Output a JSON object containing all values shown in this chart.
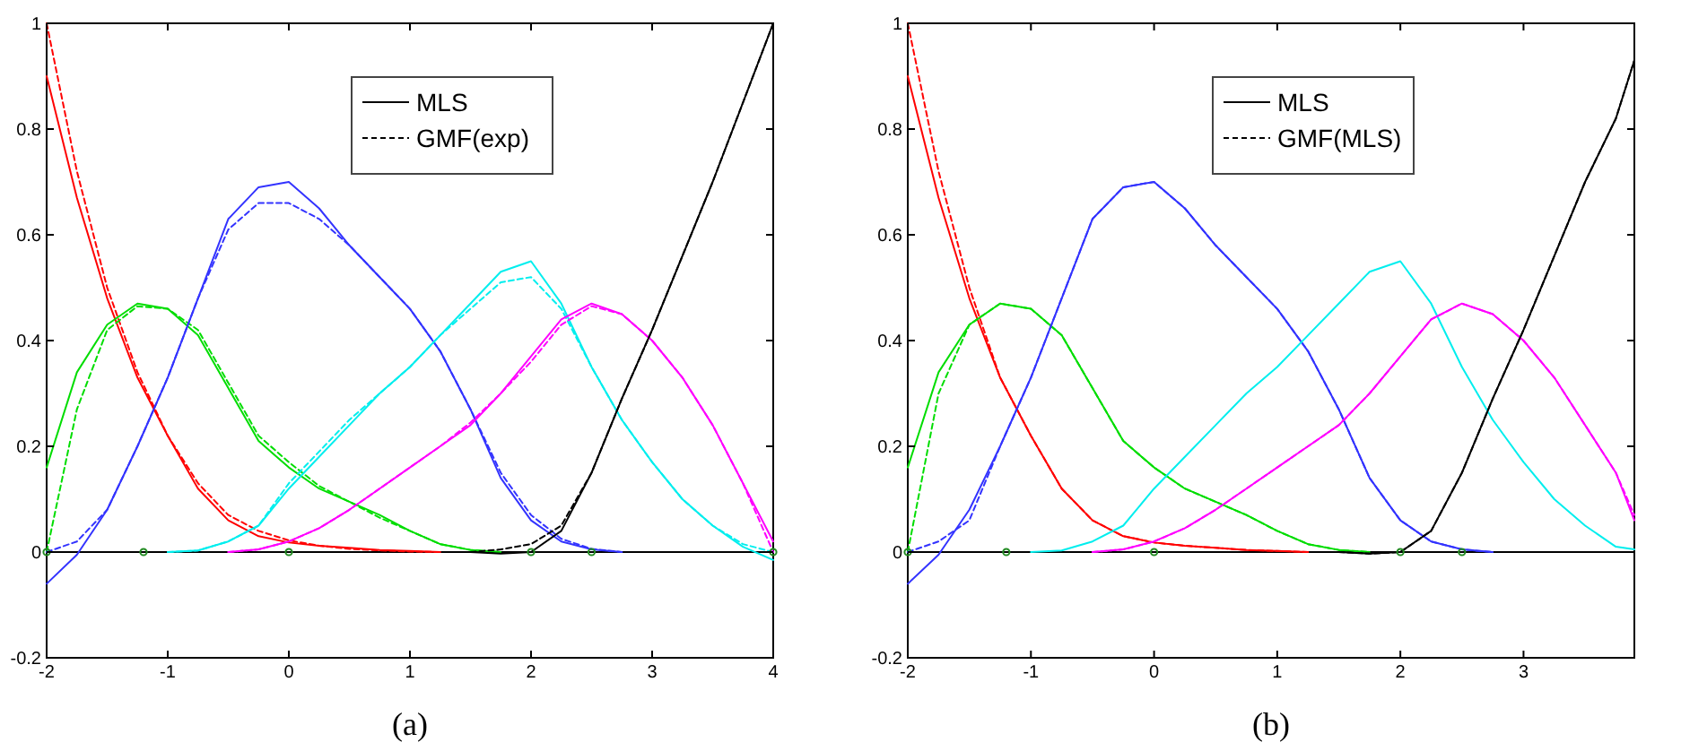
{
  "chart_data": [
    {
      "type": "line",
      "title": "(a)",
      "x": [
        -2,
        -1.75,
        -1.5,
        -1.25,
        -1,
        -0.75,
        -0.5,
        -0.25,
        0,
        0.25,
        0.5,
        0.75,
        1,
        1.25,
        1.5,
        1.75,
        2,
        2.25,
        2.5,
        2.75,
        3,
        3.25,
        3.5,
        3.75,
        4
      ],
      "xlim": [
        -2,
        4
      ],
      "ylim": [
        -0.2,
        1
      ],
      "xticks": [
        -2,
        -1,
        0,
        1,
        2,
        3,
        4
      ],
      "yticks": [
        -0.2,
        0,
        0.2,
        0.4,
        0.6,
        0.8,
        1
      ],
      "legend": "top right",
      "ref_lines": [
        {
          "axis": "y",
          "value": 0,
          "color": "#000000"
        }
      ],
      "series": [
        {
          "color": "#ff0000",
          "line_style": "solid",
          "values": [
            0.9,
            0.67,
            0.48,
            0.33,
            0.22,
            0.12,
            0.06,
            0.03,
            0.018,
            0.012,
            0.008,
            0.004,
            0.002,
            0,
            null,
            null,
            null,
            null,
            null,
            null,
            null,
            null,
            null,
            null,
            null
          ]
        },
        {
          "color": "#ff0000",
          "line_style": "dashed",
          "values": [
            1.0,
            0.72,
            0.5,
            0.34,
            0.22,
            0.13,
            0.07,
            0.04,
            0.022,
            0.012,
            0.006,
            0.003,
            0.001,
            0,
            null,
            null,
            null,
            null,
            null,
            null,
            null,
            null,
            null,
            null,
            null
          ]
        },
        {
          "color": "#00dd00",
          "line_style": "solid",
          "values": [
            0.16,
            0.34,
            0.43,
            0.47,
            0.46,
            0.41,
            0.31,
            0.21,
            0.16,
            0.12,
            0.095,
            0.07,
            0.04,
            0.015,
            0.004,
            0,
            null,
            null,
            null,
            null,
            null,
            null,
            null,
            null,
            null
          ]
        },
        {
          "color": "#00dd00",
          "line_style": "dashed",
          "values": [
            0,
            0.27,
            0.42,
            0.465,
            0.46,
            0.42,
            0.32,
            0.22,
            0.17,
            0.125,
            0.095,
            0.065,
            0.04,
            0.015,
            0.004,
            0,
            null,
            null,
            null,
            null,
            null,
            null,
            null,
            null,
            null
          ]
        },
        {
          "color": "#3333ff",
          "line_style": "solid",
          "values": [
            -0.06,
            -0.005,
            0.08,
            0.2,
            0.33,
            0.48,
            0.63,
            0.69,
            0.7,
            0.65,
            0.58,
            0.52,
            0.46,
            0.38,
            0.27,
            0.14,
            0.06,
            0.02,
            0.005,
            0,
            null,
            null,
            null,
            null,
            null
          ]
        },
        {
          "color": "#3333ff",
          "line_style": "dashed",
          "values": [
            0,
            0.02,
            0.08,
            0.2,
            0.33,
            0.48,
            0.61,
            0.66,
            0.66,
            0.63,
            0.58,
            0.52,
            0.46,
            0.38,
            0.27,
            0.15,
            0.07,
            0.025,
            0.006,
            0,
            null,
            null,
            null,
            null,
            null
          ]
        },
        {
          "color": "#00eeee",
          "line_style": "solid",
          "values": [
            null,
            null,
            null,
            null,
            0,
            0.003,
            0.02,
            0.05,
            0.12,
            0.18,
            0.24,
            0.3,
            0.35,
            0.41,
            0.47,
            0.53,
            0.55,
            0.47,
            0.35,
            0.25,
            0.17,
            0.1,
            0.05,
            0.01,
            -0.015
          ]
        },
        {
          "color": "#00eeee",
          "line_style": "dashed",
          "values": [
            null,
            null,
            null,
            null,
            0,
            0.003,
            0.02,
            0.05,
            0.13,
            0.19,
            0.25,
            0.3,
            0.35,
            0.41,
            0.46,
            0.51,
            0.52,
            0.46,
            0.35,
            0.25,
            0.17,
            0.1,
            0.05,
            0.015,
            0
          ]
        },
        {
          "color": "#ff00ff",
          "line_style": "solid",
          "values": [
            null,
            null,
            null,
            null,
            null,
            null,
            0,
            0.005,
            0.02,
            0.045,
            0.08,
            0.12,
            0.16,
            0.2,
            0.24,
            0.3,
            0.37,
            0.44,
            0.47,
            0.45,
            0.4,
            0.33,
            0.24,
            0.13,
            0.02
          ]
        },
        {
          "color": "#ff00ff",
          "line_style": "dashed",
          "values": [
            null,
            null,
            null,
            null,
            null,
            null,
            0,
            0.005,
            0.02,
            0.045,
            0.08,
            0.12,
            0.16,
            0.2,
            0.245,
            0.3,
            0.36,
            0.43,
            0.465,
            0.45,
            0.4,
            0.33,
            0.24,
            0.13,
            0
          ]
        },
        {
          "name": "MLS",
          "color": "#000000",
          "line_style": "solid",
          "values": [
            null,
            null,
            null,
            null,
            null,
            null,
            null,
            null,
            null,
            null,
            null,
            null,
            null,
            null,
            0,
            -0.003,
            0,
            0.04,
            0.15,
            0.29,
            0.42,
            0.56,
            0.7,
            0.85,
            1.0
          ]
        },
        {
          "name": "GMF(exp)",
          "color": "#000000",
          "line_style": "dashed",
          "values": [
            null,
            null,
            null,
            null,
            null,
            null,
            null,
            null,
            null,
            null,
            null,
            null,
            null,
            null,
            0,
            0.005,
            0.015,
            0.05,
            0.15,
            0.29,
            0.42,
            0.56,
            0.7,
            0.85,
            1.0
          ]
        },
        {
          "type": "scatter",
          "marker": "circle",
          "color": "#228b22",
          "x": [
            -2,
            -1.2,
            0,
            2,
            2.5,
            4
          ],
          "values": [
            0,
            0,
            0,
            0,
            0,
            0
          ]
        }
      ]
    },
    {
      "type": "line",
      "title": "(b)",
      "x": [
        -2,
        -1.75,
        -1.5,
        -1.25,
        -1,
        -0.75,
        -0.5,
        -0.25,
        0,
        0.25,
        0.5,
        0.75,
        1,
        1.25,
        1.5,
        1.75,
        2,
        2.25,
        2.5,
        2.75,
        3,
        3.25,
        3.5,
        3.75,
        3.9
      ],
      "xlim": [
        -2,
        3.9
      ],
      "ylim": [
        -0.2,
        1
      ],
      "xticks": [
        -2,
        -1,
        0,
        1,
        2,
        3
      ],
      "yticks": [
        -0.2,
        0,
        0.2,
        0.4,
        0.6,
        0.8,
        1
      ],
      "legend": "top right",
      "ref_lines": [
        {
          "axis": "y",
          "value": 0,
          "color": "#000000"
        }
      ],
      "series": [
        {
          "color": "#ff0000",
          "line_style": "solid",
          "values": [
            0.9,
            0.67,
            0.48,
            0.33,
            0.22,
            0.12,
            0.06,
            0.03,
            0.018,
            0.012,
            0.008,
            0.004,
            0.002,
            0,
            null,
            null,
            null,
            null,
            null,
            null,
            null,
            null,
            null,
            null,
            null
          ]
        },
        {
          "color": "#ff0000",
          "line_style": "dashed",
          "values": [
            1.0,
            0.72,
            0.5,
            0.33,
            0.22,
            0.12,
            0.06,
            0.03,
            0.018,
            0.012,
            0.008,
            0.004,
            0.002,
            0,
            null,
            null,
            null,
            null,
            null,
            null,
            null,
            null,
            null,
            null,
            null
          ]
        },
        {
          "color": "#00dd00",
          "line_style": "solid",
          "values": [
            0.16,
            0.34,
            0.43,
            0.47,
            0.46,
            0.41,
            0.31,
            0.21,
            0.16,
            0.12,
            0.095,
            0.07,
            0.04,
            0.015,
            0.004,
            0,
            null,
            null,
            null,
            null,
            null,
            null,
            null,
            null,
            null
          ]
        },
        {
          "color": "#00dd00",
          "line_style": "dashed",
          "values": [
            0,
            0.3,
            0.43,
            0.47,
            0.46,
            0.41,
            0.31,
            0.21,
            0.16,
            0.12,
            0.095,
            0.07,
            0.04,
            0.015,
            0.004,
            0,
            null,
            null,
            null,
            null,
            null,
            null,
            null,
            null,
            null
          ]
        },
        {
          "color": "#3333ff",
          "line_style": "solid",
          "values": [
            -0.06,
            -0.005,
            0.08,
            0.2,
            0.33,
            0.48,
            0.63,
            0.69,
            0.7,
            0.65,
            0.58,
            0.52,
            0.46,
            0.38,
            0.27,
            0.14,
            0.06,
            0.02,
            0.005,
            0,
            null,
            null,
            null,
            null,
            null
          ]
        },
        {
          "color": "#3333ff",
          "line_style": "dashed",
          "values": [
            0,
            0.02,
            0.06,
            0.2,
            0.33,
            0.48,
            0.63,
            0.69,
            0.7,
            0.65,
            0.58,
            0.52,
            0.46,
            0.38,
            0.27,
            0.14,
            0.06,
            0.02,
            0.005,
            0,
            null,
            null,
            null,
            null,
            null
          ]
        },
        {
          "color": "#00eeee",
          "line_style": "solid",
          "values": [
            null,
            null,
            null,
            null,
            0,
            0.003,
            0.02,
            0.05,
            0.12,
            0.18,
            0.24,
            0.3,
            0.35,
            0.41,
            0.47,
            0.53,
            0.55,
            0.47,
            0.35,
            0.25,
            0.17,
            0.1,
            0.05,
            0.01,
            0.005
          ]
        },
        {
          "color": "#ff00ff",
          "line_style": "solid",
          "values": [
            null,
            null,
            null,
            null,
            null,
            null,
            0,
            0.005,
            0.02,
            0.045,
            0.08,
            0.12,
            0.16,
            0.2,
            0.24,
            0.3,
            0.37,
            0.44,
            0.47,
            0.45,
            0.4,
            0.33,
            0.24,
            0.15,
            0.06
          ]
        },
        {
          "color": "#ff00ff",
          "line_style": "dashed",
          "values": [
            null,
            null,
            null,
            null,
            null,
            null,
            0,
            0.005,
            0.02,
            0.045,
            0.08,
            0.12,
            0.16,
            0.2,
            0.24,
            0.3,
            0.37,
            0.44,
            0.47,
            0.45,
            0.4,
            0.33,
            0.24,
            0.15,
            0.07
          ]
        },
        {
          "name": "MLS",
          "color": "#000000",
          "line_style": "solid",
          "values": [
            null,
            null,
            null,
            null,
            null,
            null,
            null,
            null,
            null,
            null,
            null,
            null,
            null,
            null,
            0,
            -0.003,
            0,
            0.04,
            0.15,
            0.29,
            0.42,
            0.56,
            0.7,
            0.82,
            0.93
          ]
        },
        {
          "name": "GMF(MLS)",
          "color": "#000000",
          "line_style": "dashed",
          "values": [
            null,
            null,
            null,
            null,
            null,
            null,
            null,
            null,
            null,
            null,
            null,
            null,
            null,
            null,
            0,
            -0.003,
            0,
            0.04,
            0.15,
            0.29,
            0.42,
            0.56,
            0.7,
            0.82,
            0.93
          ]
        },
        {
          "type": "scatter",
          "marker": "circle",
          "color": "#228b22",
          "x": [
            -2,
            -1.2,
            0,
            2,
            2.5
          ],
          "values": [
            0,
            0,
            0,
            0,
            0
          ]
        }
      ]
    }
  ]
}
